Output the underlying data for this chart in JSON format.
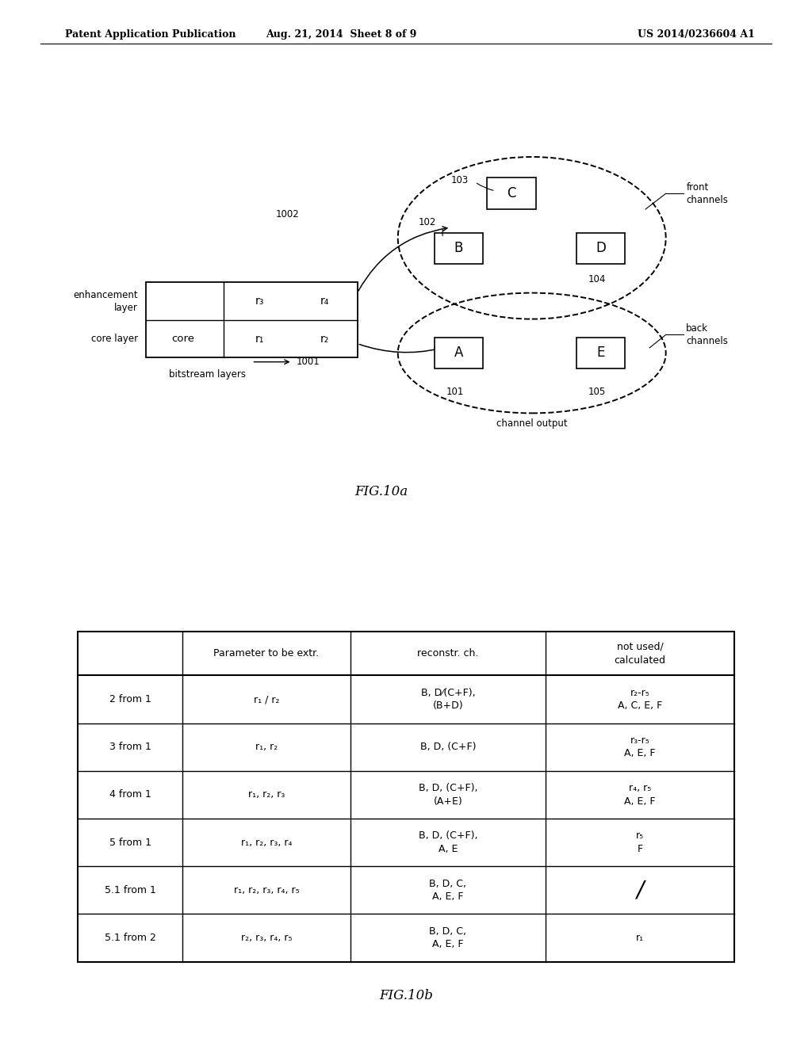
{
  "header_left": "Patent Application Publication",
  "header_mid": "Aug. 21, 2014  Sheet 8 of 9",
  "header_right": "US 2014/0236604 A1",
  "fig10a_label": "FIG.10a",
  "fig10b_label": "FIG.10b",
  "table_rows": [
    [
      "2 from 1",
      "r₁ / r₂",
      "B, D⁄(C+F),\n(B+D)",
      "r₂-r₅\nA, C, E, F"
    ],
    [
      "3 from 1",
      "r₁, r₂",
      "B, D, (C+F)",
      "r₃-r₅\nA, E, F"
    ],
    [
      "4 from 1",
      "r₁, r₂, r₃",
      "B, D, (C+F),\n(A+E)",
      "r₄, r₅\nA, E, F"
    ],
    [
      "5 from 1",
      "r₁, r₂, r₃, r₄",
      "B, D, (C+F),\nA, E",
      "r₅\nF"
    ],
    [
      "5.1 from 1",
      "r₁, r₂, r₃, r₄, r₅",
      "B, D, C,\nA, E, F",
      "/"
    ],
    [
      "5.1 from 2",
      "r₂, r₃, r₄, r₅",
      "B, D, C,\nA, E, F",
      "r₁"
    ]
  ],
  "table_headers": [
    "",
    "Parameter to be extr.",
    "reconstr. ch.",
    "not used/\ncalculated"
  ],
  "bg_color": "#ffffff"
}
